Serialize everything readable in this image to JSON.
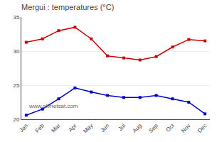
{
  "chart_data": {
    "type": "line",
    "title": "Mergui : temperatures (°C)",
    "categories": [
      "Jan",
      "Feb",
      "Mar",
      "Apr",
      "May",
      "Jun",
      "Jul",
      "Aug",
      "Sep",
      "Oct",
      "Nov",
      "Dec"
    ],
    "series": [
      {
        "color": "#cc0000",
        "values": [
          31.3,
          31.8,
          33.0,
          33.5,
          31.8,
          29.3,
          29.0,
          28.7,
          29.2,
          30.6,
          31.7,
          31.5
        ]
      },
      {
        "color": "#0000cc",
        "values": [
          20.6,
          21.5,
          23.0,
          24.6,
          24.0,
          23.5,
          23.2,
          23.2,
          23.5,
          23.0,
          22.5,
          20.8
        ]
      }
    ],
    "marker": "square",
    "ylim": [
      20,
      35
    ],
    "yticks": [
      20,
      25,
      30,
      35
    ],
    "grid": true,
    "annotations": [
      "www.allmetsat.com"
    ]
  }
}
